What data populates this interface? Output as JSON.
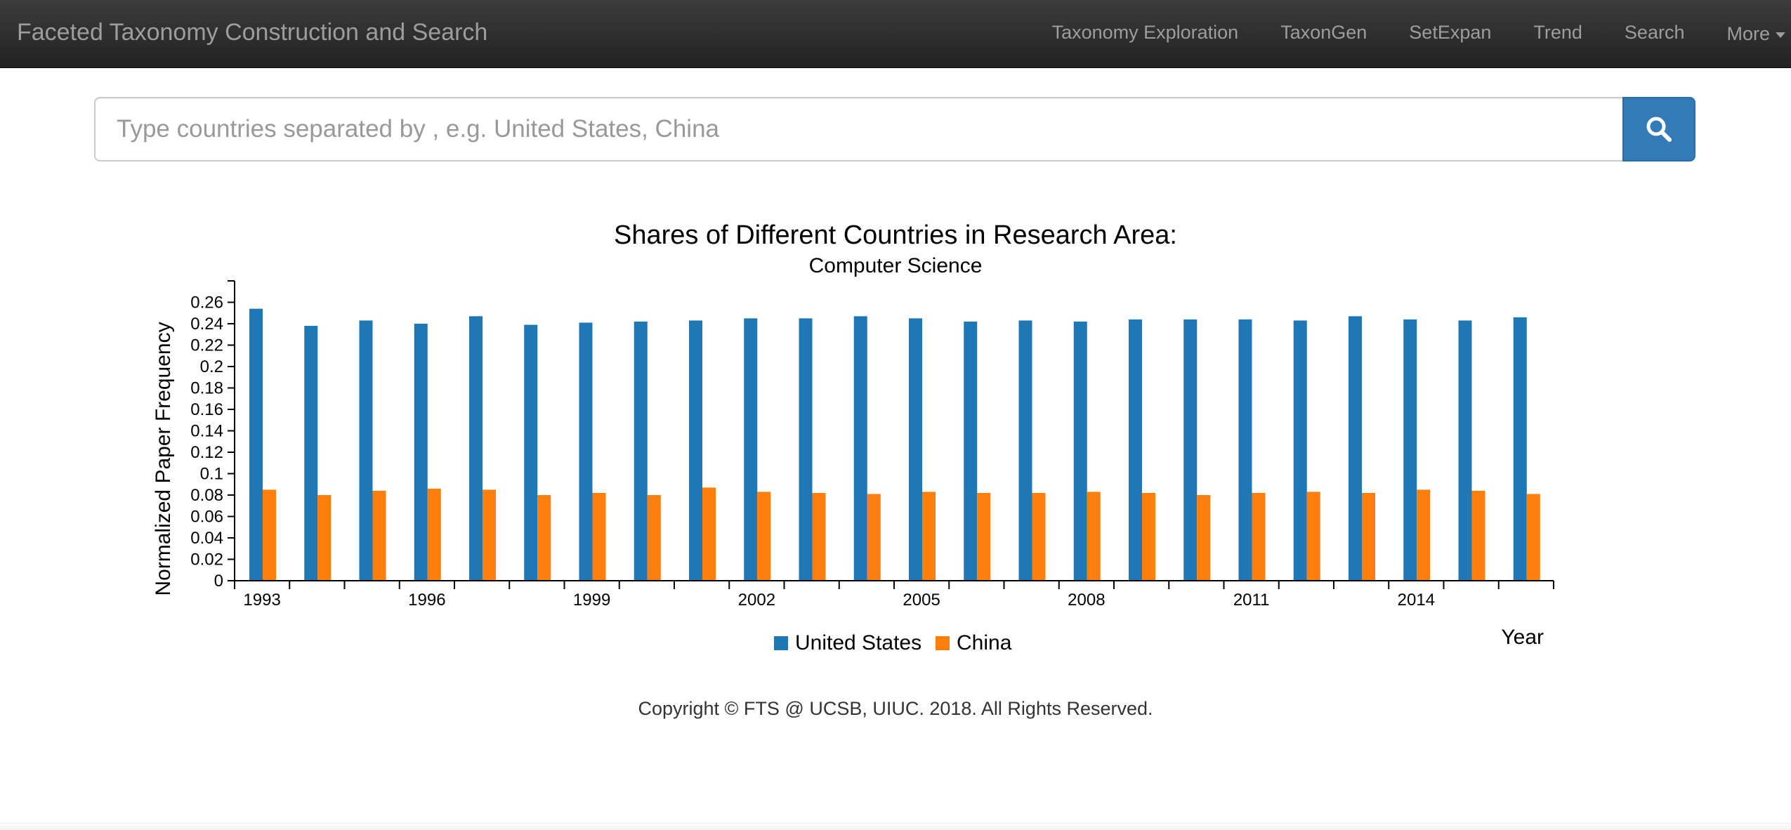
{
  "navbar": {
    "brand": "Faceted Taxonomy Construction and Search",
    "items": [
      {
        "label": "Taxonomy Exploration"
      },
      {
        "label": "TaxonGen"
      },
      {
        "label": "SetExpan"
      },
      {
        "label": "Trend"
      },
      {
        "label": "Search"
      }
    ],
    "more_label": "More"
  },
  "search": {
    "placeholder": "Type countries separated by , e.g. United States, China",
    "value": "",
    "button_icon": "search-icon"
  },
  "chart_data": {
    "type": "bar",
    "title": "Shares of Different Countries in Research Area:",
    "subtitle": "Computer Science",
    "xlabel": "Year",
    "ylabel": "Normalized Paper Frequency",
    "ylim": [
      0,
      0.28
    ],
    "y_ticks": [
      "0",
      "0.02",
      "0.04",
      "0.06",
      "0.08",
      "0.1",
      "0.12",
      "0.14",
      "0.16",
      "0.18",
      "0.2",
      "0.22",
      "0.24",
      "0.26"
    ],
    "categories": [
      "1993",
      "1994",
      "1995",
      "1996",
      "1997",
      "1998",
      "1999",
      "2000",
      "2001",
      "2002",
      "2003",
      "2004",
      "2005",
      "2006",
      "2007",
      "2008",
      "2009",
      "2010",
      "2011",
      "2012",
      "2013",
      "2014",
      "2015",
      "2016"
    ],
    "x_tick_labels": [
      "1993",
      "1996",
      "1999",
      "2002",
      "2005",
      "2008",
      "2011",
      "2014"
    ],
    "series": [
      {
        "name": "United States",
        "color": "#1f77b4",
        "values": [
          0.254,
          0.238,
          0.243,
          0.24,
          0.247,
          0.239,
          0.241,
          0.242,
          0.243,
          0.245,
          0.245,
          0.247,
          0.245,
          0.242,
          0.243,
          0.242,
          0.244,
          0.244,
          0.244,
          0.243,
          0.247,
          0.244,
          0.243,
          0.246
        ]
      },
      {
        "name": "China",
        "color": "#ff7f0e",
        "values": [
          0.085,
          0.08,
          0.084,
          0.086,
          0.085,
          0.08,
          0.082,
          0.08,
          0.087,
          0.083,
          0.082,
          0.081,
          0.083,
          0.082,
          0.082,
          0.083,
          0.082,
          0.08,
          0.082,
          0.083,
          0.082,
          0.085,
          0.084,
          0.081
        ]
      }
    ],
    "legend_position": "bottom-center",
    "grid": false
  },
  "footer": {
    "copyright": "Copyright © FTS @ UCSB, UIUC. 2018. All Rights Reserved."
  }
}
